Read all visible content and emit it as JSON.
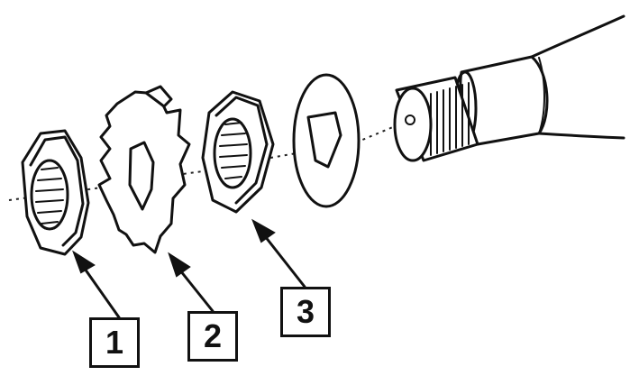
{
  "callouts": [
    {
      "number": "1",
      "part": "nut"
    },
    {
      "number": "2",
      "part": "lock-washer"
    },
    {
      "number": "3",
      "part": "nut"
    }
  ],
  "colors": {
    "ink": "#111111",
    "background": "#ffffff"
  }
}
